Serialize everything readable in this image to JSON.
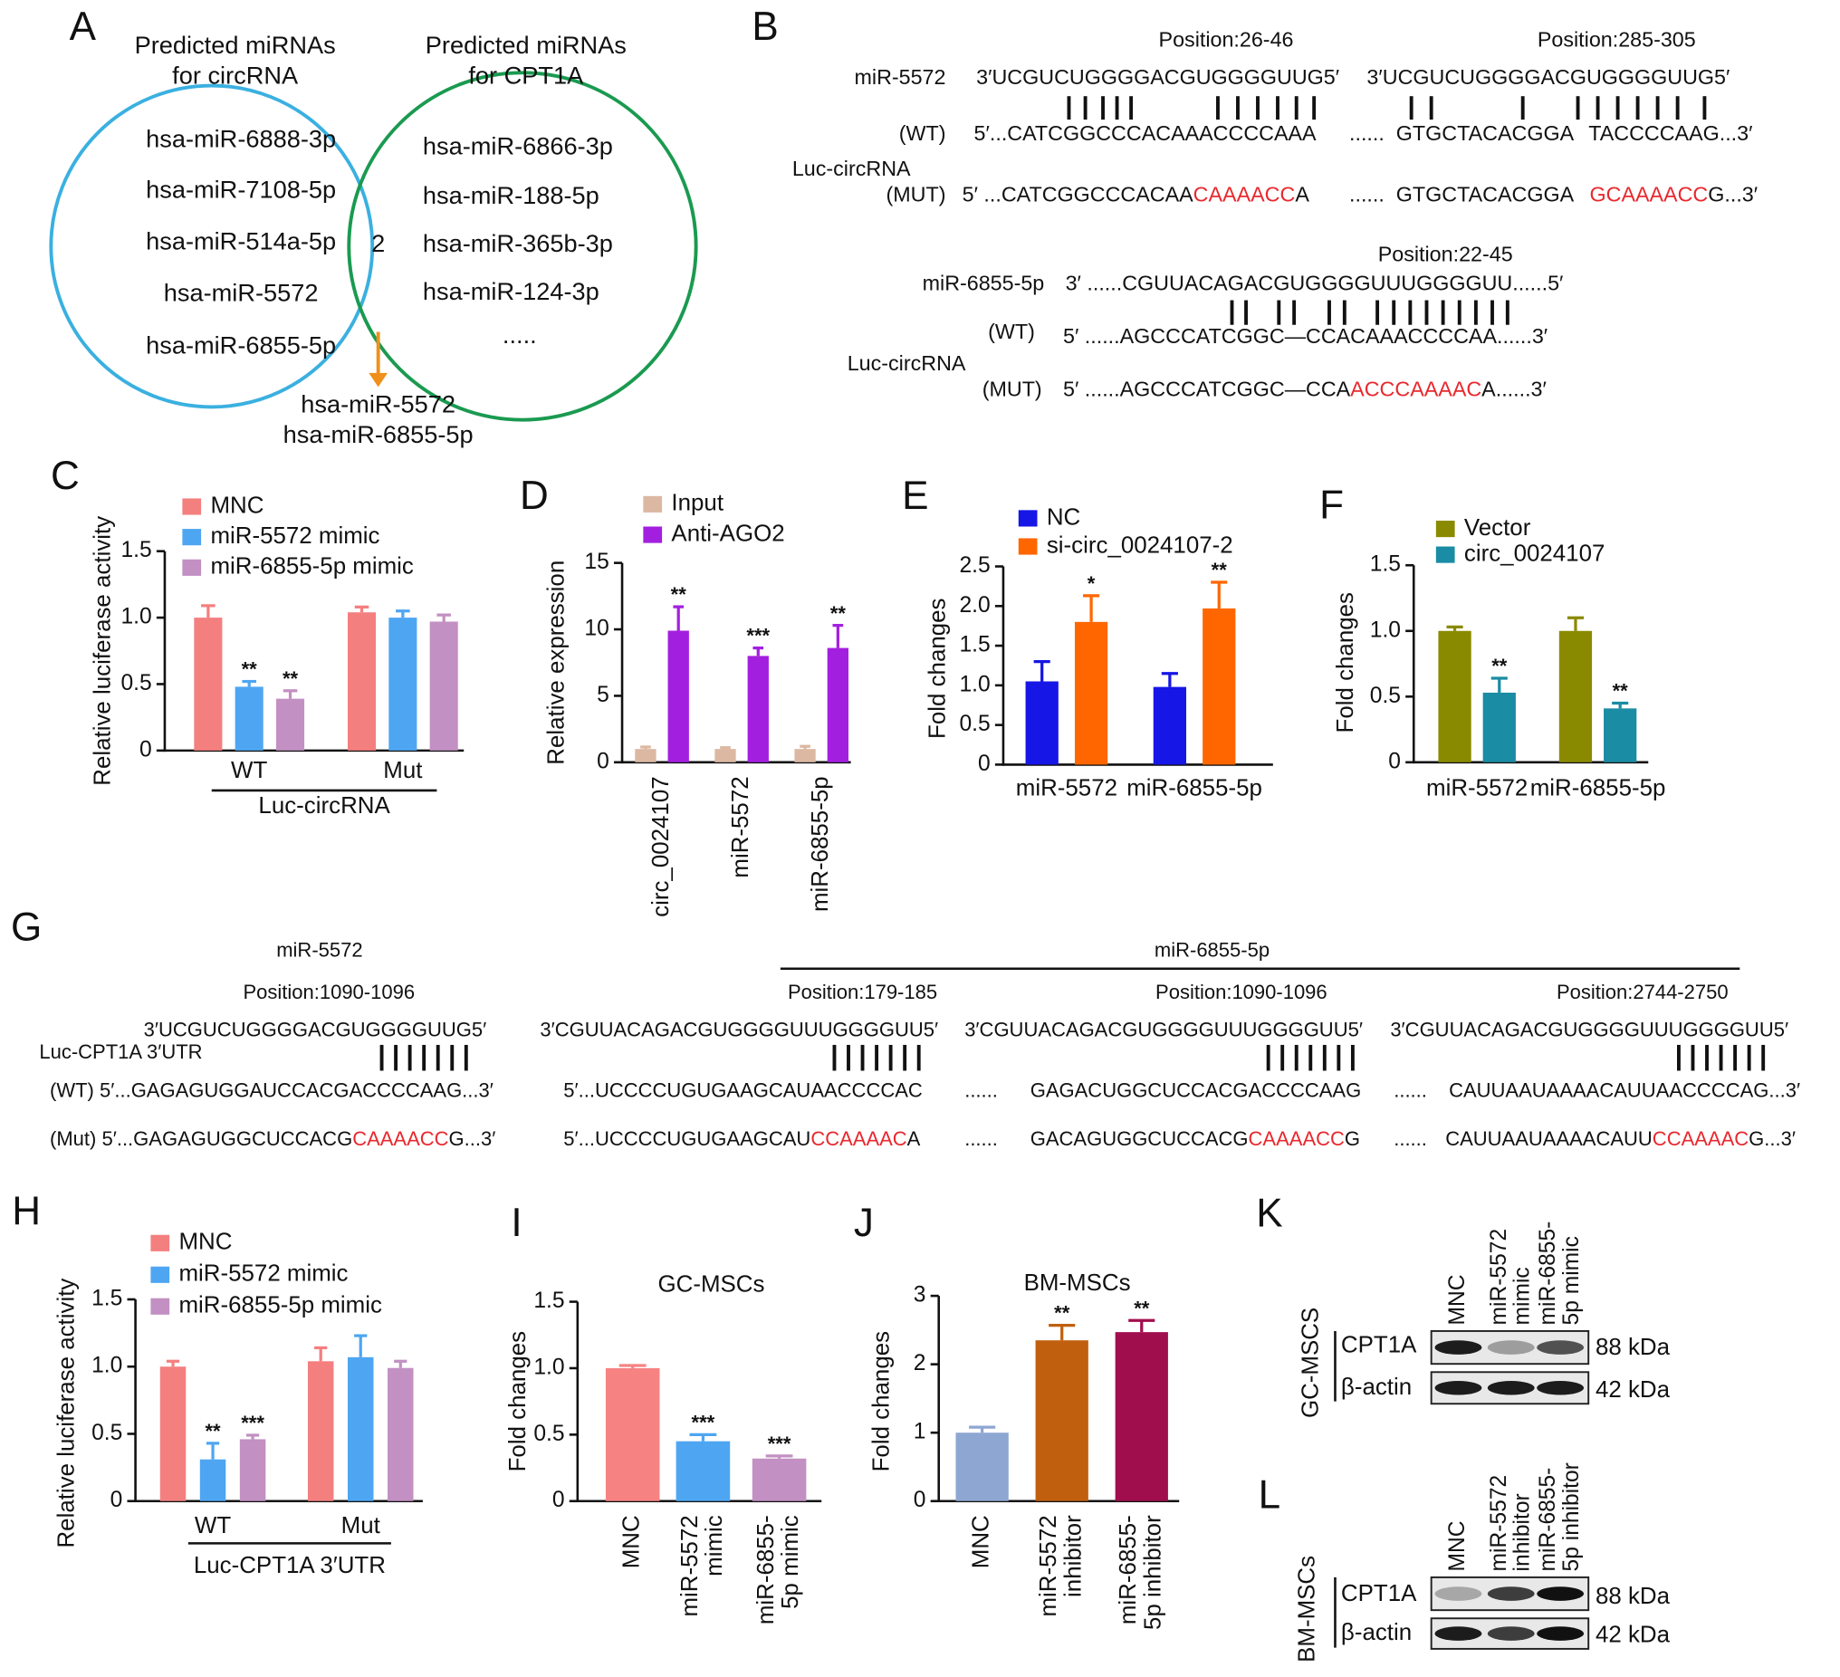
{
  "venn": {
    "panel": "A",
    "left_title": [
      "Predicted miRNAs",
      "for circRNA"
    ],
    "right_title": [
      "Predicted miRNAs",
      "for CPT1A"
    ],
    "left_items": [
      "hsa-miR-6888-3p",
      "hsa-miR-7108-5p",
      "hsa-miR-514a-5p",
      "hsa-miR-5572",
      "hsa-miR-6855-5p"
    ],
    "intersection": 2,
    "right_items": [
      "hsa-miR-6866-3p",
      "hsa-miR-188-5p",
      "hsa-miR-365b-3p",
      "hsa-miR-124-3p",
      "....."
    ],
    "result": [
      "hsa-miR-5572",
      "hsa-miR-6855-5p"
    ]
  },
  "panel_b": {
    "panel": "B",
    "texts": [
      [
        "Position:26-46"
      ],
      [
        "Position:285-305"
      ],
      [
        "miR-5572"
      ],
      [
        "3′UCGUCUGGGGACGUGGGGUUG5′"
      ],
      [
        "3′UCGUCUGGGGACGUGGGGUUG5′"
      ],
      [
        "(WT)"
      ],
      [
        "5′...CATCGGCCCACAAACCCCAAA"
      ],
      [
        "......"
      ],
      [
        "GTGCTACACGGA"
      ],
      [
        "TACCCCAAG...3′"
      ],
      [
        "Luc-circRNA"
      ],
      [
        "(MUT)"
      ],
      [
        "5′ ...CATCGGCCCACAA",
        {
          "text": "CAAAACC",
          "color": "#e8282e"
        },
        "A"
      ],
      [
        "......"
      ],
      [
        "GTGCTACACGGA"
      ],
      [
        {
          "text": "GCAAAACC",
          "color": "#e8282e"
        },
        "G...3′"
      ],
      [
        "Position:22-45"
      ],
      [
        "miR-6855-5p"
      ],
      [
        "3′ ......CGUUACAGACGUGGGGUUUGGGGUU......5′"
      ],
      [
        "(WT)"
      ],
      [
        "5′ ......AGCCCATCGGC—CCACAAACCCCAA......3′"
      ],
      [
        "Luc-circRNA"
      ],
      [
        "(MUT)"
      ],
      [
        "5′ ......AGCCCATCGGC—CCA",
        {
          "text": "ACCCAAAAC",
          "color": "#e8282e"
        },
        "A......3′"
      ]
    ]
  },
  "panel_g": {
    "panel": "G",
    "texts": [
      [
        "miR-5572"
      ],
      [
        "miR-6855-5p"
      ],
      [
        "Position:1090-1096"
      ],
      [
        "Position:179-185"
      ],
      [
        "Position:1090-1096"
      ],
      [
        "Position:2744-2750"
      ],
      [
        "3′UCGUCUGGGGACGUGGGGUUG5′"
      ],
      [
        "3′CGUUACAGACGUGGGGUUUGGGGUU5′"
      ],
      [
        "3′CGUUACAGACGUGGGGUUUGGGGUU5′"
      ],
      [
        "3′CGUUACAGACGUGGGGUUUGGGGUU5′"
      ],
      [
        "Luc-CPT1A 3′UTR"
      ],
      [
        "(WT) 5′...GAGAGUGGAUCCACGACCCCAAG...3′"
      ],
      [
        "5′...UCCCCUGUGAAGCAUAACCCCAC"
      ],
      [
        "......"
      ],
      [
        "GAGACUGGCUCCACGACCCCAAG"
      ],
      [
        "......"
      ],
      [
        "CAUUAAUAAAACAUUAACCCCAG...3′"
      ],
      [
        "(Mut) 5′...GAGAGUGGCUCCACG",
        {
          "text": "CAAAACC",
          "color": "#e8282e"
        },
        "G...3′"
      ],
      [
        "5′...UCCCCUGUGAAGCAU",
        {
          "text": "CCAAAAC",
          "color": "#e8282e"
        },
        "A"
      ],
      [
        "......"
      ],
      [
        "GACAGUGGCUCCACG",
        {
          "text": "CAAAACC",
          "color": "#e8282e"
        },
        "G"
      ],
      [
        "......"
      ],
      [
        "CAUUAAUAAAACAUU",
        {
          "text": "CCAAAAC",
          "color": "#e8282e"
        },
        "G...3′"
      ]
    ]
  },
  "chart_data": [
    {
      "type": "bar",
      "panel": "C",
      "ylabel": "Relative luciferase activity",
      "categories": [
        "WT",
        "Mut"
      ],
      "group_label": "Luc-circRNA",
      "series": [
        {
          "name": "MNC",
          "color": "#f47f7f",
          "values": [
            1.0,
            1.04
          ],
          "errors": [
            0.09,
            0.04
          ],
          "significance": [
            null,
            null
          ]
        },
        {
          "name": "miR-5572 mimic",
          "color": "#4ea6f2",
          "values": [
            0.48,
            1.0
          ],
          "errors": [
            0.04,
            0.05
          ],
          "significance": [
            "**",
            null
          ]
        },
        {
          "name": "miR-6855-5p mimic",
          "color": "#c290c2",
          "values": [
            0.39,
            0.97
          ],
          "errors": [
            0.06,
            0.05
          ],
          "significance": [
            "**",
            null
          ]
        }
      ],
      "ylim": [
        0,
        1.5
      ],
      "yticks": [
        0,
        0.5,
        {
          "value": 1,
          "label": "1.0"
        },
        1.5
      ]
    },
    {
      "type": "bar",
      "panel": "D",
      "ylabel": "Relative expression",
      "categories": [
        "circ_0024107",
        "miR-5572",
        "miR-6855-5p"
      ],
      "series": [
        {
          "name": "Input",
          "color": "#dcb8a3",
          "values": [
            1,
            1,
            1
          ],
          "errors": [
            0.15,
            0.1,
            0.2
          ],
          "significance": [
            null,
            null,
            null
          ]
        },
        {
          "name": "Anti-AGO2",
          "color": "#a31fe0",
          "values": [
            9.9,
            8.0,
            8.6
          ],
          "errors": [
            1.8,
            0.6,
            1.7
          ],
          "significance": [
            "**",
            "***",
            "**"
          ]
        }
      ],
      "ylim": [
        0,
        15
      ],
      "yticks": [
        0,
        5,
        10,
        15
      ]
    },
    {
      "type": "bar",
      "panel": "E",
      "ylabel": "Fold changes",
      "categories": [
        "miR-5572",
        "miR-6855-5p"
      ],
      "series": [
        {
          "name": "NC",
          "color": "#1616e6",
          "values": [
            1.05,
            0.98
          ],
          "errors": [
            0.25,
            0.17
          ],
          "significance": [
            null,
            null
          ]
        },
        {
          "name": "si-circ_0024107-2",
          "color": "#ff6600",
          "values": [
            1.8,
            1.97
          ],
          "errors": [
            0.33,
            0.33
          ],
          "significance": [
            "*",
            "**"
          ]
        }
      ],
      "ylim": [
        0,
        2.5
      ],
      "yticks": [
        0,
        0.5,
        {
          "value": 1,
          "label": "1.0"
        },
        1.5,
        {
          "value": 2,
          "label": "2.0"
        },
        2.5
      ]
    },
    {
      "type": "bar",
      "panel": "F",
      "ylabel": "Fold changes",
      "categories": [
        "miR-5572",
        "miR-6855-5p"
      ],
      "series": [
        {
          "name": "Vector",
          "color": "#8a8a00",
          "values": [
            1.0,
            1.0
          ],
          "errors": [
            0.03,
            0.1
          ],
          "significance": [
            null,
            null
          ]
        },
        {
          "name": "circ_0024107",
          "color": "#1a8ca3",
          "values": [
            0.53,
            0.41
          ],
          "errors": [
            0.11,
            0.04
          ],
          "significance": [
            "**",
            "**"
          ]
        }
      ],
      "ylim": [
        0,
        1.5
      ],
      "yticks": [
        0,
        0.5,
        {
          "value": 1,
          "label": "1.0"
        },
        1.5
      ]
    },
    {
      "type": "bar",
      "panel": "H",
      "ylabel": "Relative luciferase activity",
      "categories": [
        "WT",
        "Mut"
      ],
      "group_label": "Luc-CPT1A 3′UTR",
      "series": [
        {
          "name": "MNC",
          "color": "#f47f7f",
          "values": [
            1.0,
            1.04
          ],
          "errors": [
            0.04,
            0.1
          ],
          "significance": [
            null,
            null
          ]
        },
        {
          "name": "miR-5572 mimic",
          "color": "#4ea6f2",
          "values": [
            0.31,
            1.07
          ],
          "errors": [
            0.12,
            0.16
          ],
          "significance": [
            "**",
            null
          ]
        },
        {
          "name": "miR-6855-5p mimic",
          "color": "#c290c2",
          "values": [
            0.46,
            0.99
          ],
          "errors": [
            0.03,
            0.05
          ],
          "significance": [
            "***",
            null
          ]
        }
      ],
      "ylim": [
        0,
        1.5
      ],
      "yticks": [
        0,
        0.5,
        {
          "value": 1,
          "label": "1.0"
        },
        1.5
      ]
    },
    {
      "type": "bar",
      "panel": "I",
      "title": "GC-MSCs",
      "ylabel": "Fold changes",
      "categories": [
        "MNC",
        "miR-5572\nmimic",
        "miR-6855-\n5p mimic"
      ],
      "values": [
        1.0,
        0.45,
        0.32
      ],
      "errors": [
        0.02,
        0.05,
        0.02
      ],
      "significance": [
        null,
        "***",
        "***"
      ],
      "colors": [
        "#f78282",
        "#4ea6f2",
        "#c290c2"
      ],
      "ylim": [
        0,
        1.5
      ],
      "yticks": [
        0,
        0.5,
        {
          "value": 1,
          "label": "1.0"
        },
        1.5
      ]
    },
    {
      "type": "bar",
      "panel": "J",
      "title": "BM-MSCs",
      "ylabel": "Fold changes",
      "categories": [
        "MNC",
        "miR-5572\ninhibitor",
        "miR-6855-\n5p inhibitor"
      ],
      "values": [
        1.0,
        2.35,
        2.47
      ],
      "errors": [
        0.08,
        0.22,
        0.17
      ],
      "significance": [
        null,
        "**",
        "**"
      ],
      "colors": [
        "#8ea6d2",
        "#c0600e",
        "#a10e4e"
      ],
      "ylim": [
        0,
        3
      ],
      "yticks": [
        0,
        1,
        2,
        3
      ]
    }
  ],
  "blots": [
    {
      "panel": "K",
      "cell": "GC-MSCS",
      "lanes": [
        "MNC",
        "miR-5572\nmimic",
        "miR-6855-\n5p mimic"
      ],
      "proteins": [
        "CPT1A",
        "β-actin"
      ],
      "sizes": [
        "88 kDa",
        "42 kDa"
      ]
    },
    {
      "panel": "L",
      "cell": "BM-MSCs",
      "lanes": [
        "MNC",
        "miR-5572\ninhibitor",
        "miR-6855-\n5p inhibitor"
      ],
      "proteins": [
        "CPT1A",
        "β-actin"
      ],
      "sizes": [
        "88 kDa",
        "42 kDa"
      ]
    }
  ]
}
